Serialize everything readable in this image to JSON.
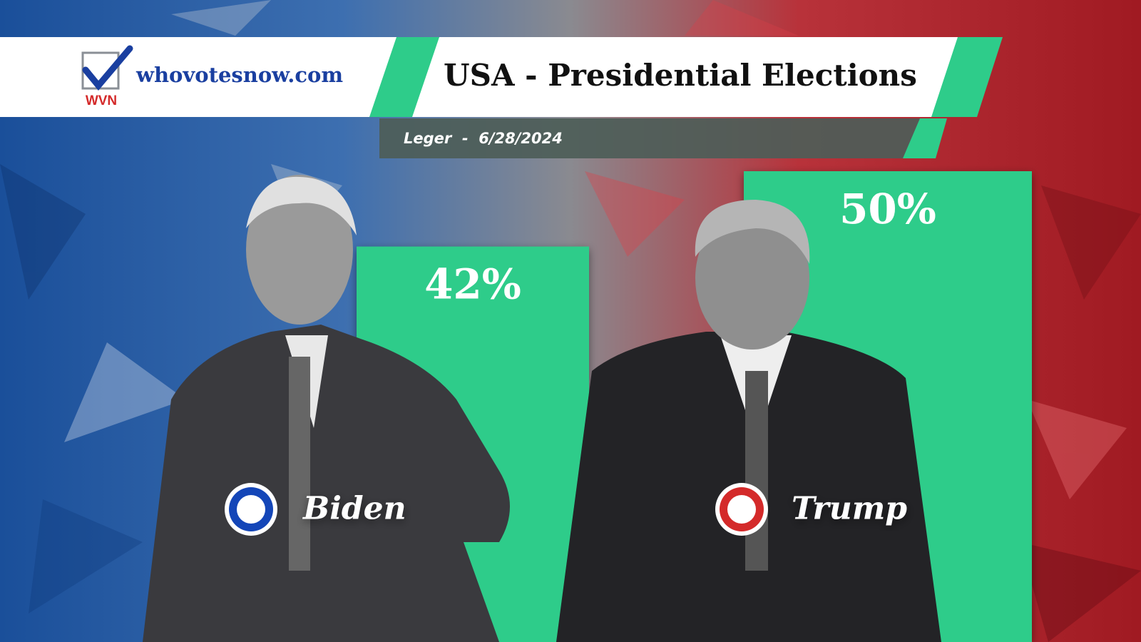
{
  "header": {
    "logo": "WVN",
    "site": "whovotesnow.com"
  },
  "chart_data": {
    "type": "bar",
    "title": "USA - Presidential Elections",
    "subtitle": "Leger  -  6/28/2024",
    "categories": [
      "Biden",
      "Trump"
    ],
    "values": [
      42,
      50
    ],
    "value_labels": [
      "42%",
      "50%"
    ],
    "color": "#2ecc8a",
    "party_colors": [
      "#1446b8",
      "#d42a2a"
    ]
  }
}
